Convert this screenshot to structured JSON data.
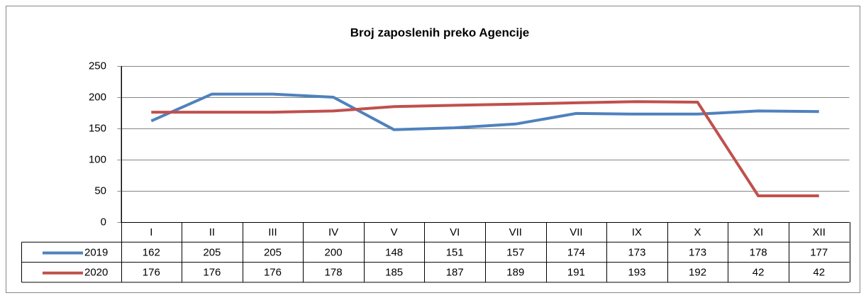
{
  "chart_data": {
    "type": "line",
    "title": "Broj zaposlenih preko Agencije",
    "categories": [
      "I",
      "II",
      "III",
      "IV",
      "V",
      "VI",
      "VII",
      "VII",
      "IX",
      "X",
      "XI",
      "XII"
    ],
    "series": [
      {
        "name": "2019",
        "color": "#4f81bd",
        "values": [
          162,
          205,
          205,
          200,
          148,
          151,
          157,
          174,
          173,
          173,
          178,
          177
        ]
      },
      {
        "name": "2020",
        "color": "#c0504d",
        "values": [
          176,
          176,
          176,
          178,
          185,
          187,
          189,
          191,
          193,
          192,
          42,
          42
        ]
      }
    ],
    "ylim": [
      0,
      250
    ],
    "yticks": [
      0,
      50,
      100,
      150,
      200,
      250
    ],
    "grid": true,
    "data_table": true
  }
}
